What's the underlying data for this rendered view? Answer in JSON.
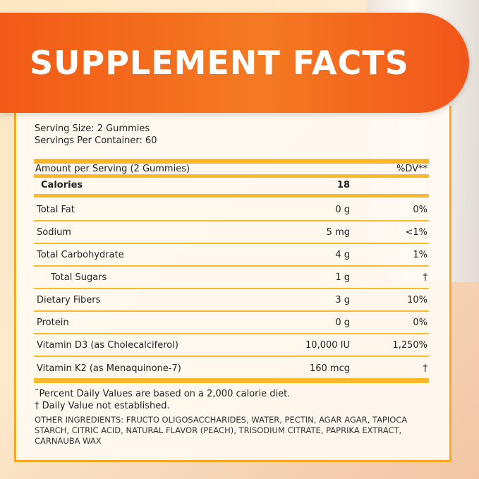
{
  "title": "SUPPLEMENT FACTS",
  "serving_size": "Serving Size: 2 Gummies",
  "servings_per_container": "Servings Per Container: 60",
  "header": {
    "amount": "Amount per Serving (2 Gummies)",
    "dv": "%DV**"
  },
  "calories": {
    "name": "Calories",
    "amount": "18",
    "dv": ""
  },
  "rows": [
    {
      "name": "Total Fat",
      "amount": "0 g",
      "dv": "0%"
    },
    {
      "name": "Sodium",
      "amount": "5 mg",
      "dv": "<1%"
    },
    {
      "name": "Total Carbohydrate",
      "amount": "4 g",
      "dv": "1%"
    },
    {
      "name": "Total Sugars",
      "amount": "1 g",
      "dv": "†"
    },
    {
      "name": "Dietary Fibers",
      "amount": "3 g",
      "dv": "10%"
    },
    {
      "name": "Protein",
      "amount": "0 g",
      "dv": "0%"
    },
    {
      "name": "Vitamin D3 (as Cholecalciferol)",
      "amount": "10,000 IU",
      "dv": "1,250%"
    },
    {
      "name": "Vitamin K2 (as Menaquinone-7)",
      "amount": "160 mcg",
      "dv": "†"
    }
  ],
  "notes": [
    "¨Percent Daily Values are based on a 2,000 calorie diet.",
    "† Daily Value not established."
  ],
  "other_ingredients": "OTHER INGREDIENTS: FRUCTO OLIGOSACCHARIDES, WATER, PECTIN, AGAR AGAR, TAPIOCA STARCH, CITRIC ACID, NATURAL FLAVOR (PEACH), TRISODIUM CITRATE, PAPRIKA EXTRACT, CARNAUBA WAX",
  "colors": {
    "banner": "#f25a17",
    "accent": "#fbb82b"
  }
}
